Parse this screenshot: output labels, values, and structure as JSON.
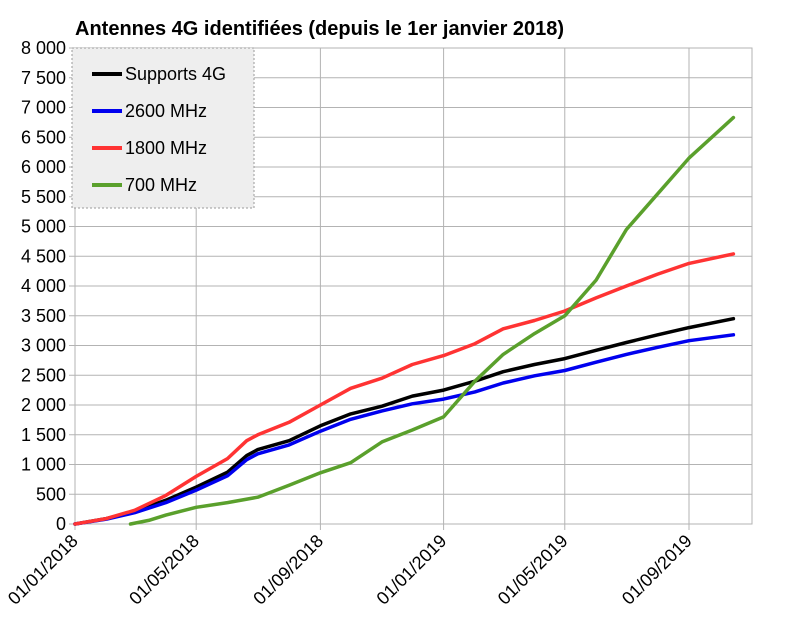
{
  "chart_data": {
    "type": "line",
    "title": "Antennes 4G identifiées (depuis le 1er janvier 2018)",
    "xlabel": "",
    "ylabel": "",
    "ylim": [
      0,
      8000
    ],
    "yticks": [
      0,
      500,
      1000,
      1500,
      2000,
      2500,
      3000,
      3500,
      4000,
      4500,
      5000,
      5500,
      6000,
      6500,
      7000,
      7500,
      8000
    ],
    "ytick_labels": [
      "0",
      "500",
      "1 000",
      "1 500",
      "2 000",
      "2 500",
      "3 000",
      "3 500",
      "4 000",
      "4 500",
      "5 000",
      "5 500",
      "6 000",
      "6 500",
      "7 000",
      "7 500",
      "8 000"
    ],
    "xlim": [
      "2018-01-01",
      "2019-11-15"
    ],
    "xticks": [
      "2018-01-01",
      "2018-05-01",
      "2018-09-01",
      "2019-01-01",
      "2019-05-01",
      "2019-09-01"
    ],
    "xtick_labels": [
      "01/01/2018",
      "01/05/2018",
      "01/09/2018",
      "01/01/2019",
      "01/05/2019",
      "01/09/2019"
    ],
    "grid": "horizontal and vertical",
    "legend_position": "top-left",
    "series": [
      {
        "name": "Supports 4G",
        "color": "#000000",
        "points": [
          [
            "2018-01-01",
            0
          ],
          [
            "2018-02-01",
            90
          ],
          [
            "2018-03-01",
            210
          ],
          [
            "2018-04-01",
            400
          ],
          [
            "2018-05-01",
            620
          ],
          [
            "2018-06-01",
            870
          ],
          [
            "2018-06-20",
            1150
          ],
          [
            "2018-07-01",
            1250
          ],
          [
            "2018-08-01",
            1400
          ],
          [
            "2018-09-01",
            1650
          ],
          [
            "2018-10-01",
            1850
          ],
          [
            "2018-11-01",
            1980
          ],
          [
            "2018-12-01",
            2150
          ],
          [
            "2019-01-01",
            2250
          ],
          [
            "2019-02-01",
            2400
          ],
          [
            "2019-03-01",
            2560
          ],
          [
            "2019-04-01",
            2680
          ],
          [
            "2019-05-01",
            2780
          ],
          [
            "2019-06-01",
            2920
          ],
          [
            "2019-07-01",
            3050
          ],
          [
            "2019-08-01",
            3180
          ],
          [
            "2019-09-01",
            3300
          ],
          [
            "2019-10-15",
            3450
          ]
        ]
      },
      {
        "name": "2600 MHz",
        "color": "#0000ee",
        "points": [
          [
            "2018-01-01",
            0
          ],
          [
            "2018-02-01",
            80
          ],
          [
            "2018-03-01",
            190
          ],
          [
            "2018-04-01",
            360
          ],
          [
            "2018-05-01",
            570
          ],
          [
            "2018-06-01",
            810
          ],
          [
            "2018-06-20",
            1080
          ],
          [
            "2018-07-01",
            1180
          ],
          [
            "2018-08-01",
            1330
          ],
          [
            "2018-09-01",
            1560
          ],
          [
            "2018-10-01",
            1760
          ],
          [
            "2018-11-01",
            1900
          ],
          [
            "2018-12-01",
            2020
          ],
          [
            "2019-01-01",
            2100
          ],
          [
            "2019-02-01",
            2220
          ],
          [
            "2019-03-01",
            2370
          ],
          [
            "2019-04-01",
            2490
          ],
          [
            "2019-05-01",
            2580
          ],
          [
            "2019-06-01",
            2720
          ],
          [
            "2019-07-01",
            2850
          ],
          [
            "2019-08-01",
            2970
          ],
          [
            "2019-09-01",
            3080
          ],
          [
            "2019-10-15",
            3180
          ]
        ]
      },
      {
        "name": "1800 MHz",
        "color": "#ff3333",
        "points": [
          [
            "2018-01-01",
            0
          ],
          [
            "2018-02-01",
            90
          ],
          [
            "2018-03-01",
            230
          ],
          [
            "2018-04-01",
            480
          ],
          [
            "2018-05-01",
            800
          ],
          [
            "2018-06-01",
            1100
          ],
          [
            "2018-06-20",
            1400
          ],
          [
            "2018-07-01",
            1500
          ],
          [
            "2018-08-01",
            1710
          ],
          [
            "2018-09-01",
            2000
          ],
          [
            "2018-10-01",
            2280
          ],
          [
            "2018-11-01",
            2450
          ],
          [
            "2018-12-01",
            2680
          ],
          [
            "2019-01-01",
            2830
          ],
          [
            "2019-02-01",
            3030
          ],
          [
            "2019-03-01",
            3280
          ],
          [
            "2019-04-01",
            3420
          ],
          [
            "2019-05-01",
            3580
          ],
          [
            "2019-06-01",
            3800
          ],
          [
            "2019-07-01",
            4000
          ],
          [
            "2019-08-01",
            4200
          ],
          [
            "2019-09-01",
            4380
          ],
          [
            "2019-10-15",
            4540
          ]
        ]
      },
      {
        "name": "700 MHz",
        "color": "#5aa02c",
        "points": [
          [
            "2018-02-25",
            0
          ],
          [
            "2018-03-15",
            60
          ],
          [
            "2018-04-01",
            150
          ],
          [
            "2018-05-01",
            280
          ],
          [
            "2018-06-01",
            360
          ],
          [
            "2018-07-01",
            450
          ],
          [
            "2018-08-01",
            650
          ],
          [
            "2018-09-01",
            860
          ],
          [
            "2018-10-01",
            1030
          ],
          [
            "2018-11-01",
            1380
          ],
          [
            "2018-12-01",
            1580
          ],
          [
            "2019-01-01",
            1800
          ],
          [
            "2019-02-01",
            2400
          ],
          [
            "2019-03-01",
            2850
          ],
          [
            "2019-04-01",
            3200
          ],
          [
            "2019-05-01",
            3500
          ],
          [
            "2019-06-01",
            4100
          ],
          [
            "2019-07-01",
            4950
          ],
          [
            "2019-08-01",
            5550
          ],
          [
            "2019-09-01",
            6150
          ],
          [
            "2019-10-15",
            6830
          ]
        ]
      }
    ]
  }
}
